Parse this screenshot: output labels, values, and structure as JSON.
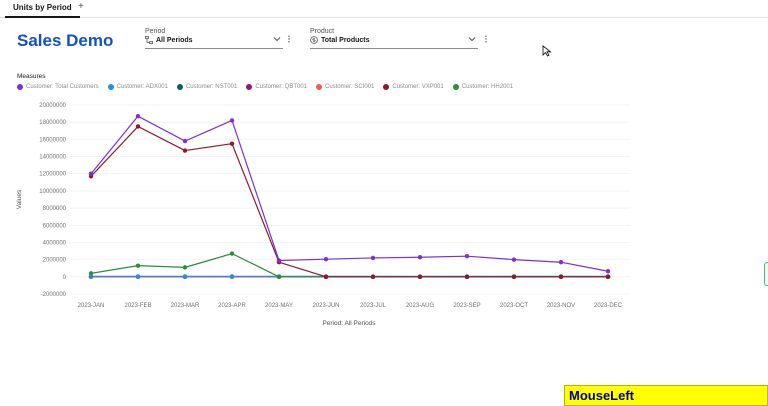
{
  "tabs": {
    "active": "Units by Period",
    "add": "+"
  },
  "dashboard": {
    "title": "Sales Demo"
  },
  "filters": {
    "period": {
      "label": "Period",
      "value": "All Periods"
    },
    "product": {
      "label": "Product",
      "value": "Total Products"
    }
  },
  "icons": {
    "period": "calendar-hierarchy-icon",
    "product": "dollar-circle-icon",
    "chevron": "chevron-down-icon",
    "menu": "overflow-menu-icon",
    "cursor": "mouse-pointer-icon"
  },
  "measures_label": "Measures",
  "status": {
    "mouse_event": "MouseLeft"
  },
  "chart_data": {
    "type": "line",
    "xlabel": "Period: All Periods",
    "ylabel": "Values",
    "categories": [
      "2023-JAN",
      "2023-FEB",
      "2023-MAR",
      "2023-APR",
      "2023-MAY",
      "2023-JUN",
      "2023-JUL",
      "2023-AUG",
      "2023-SEP",
      "2023-OCT",
      "2023-NOV",
      "2023-DEC"
    ],
    "ylim": [
      -2000000,
      20000000
    ],
    "yticks": [
      "-2000000",
      "0",
      "2000000",
      "4000000",
      "6000000",
      "8000000",
      "10000000",
      "12000000",
      "14000000",
      "16000000",
      "18000000",
      "20000000"
    ],
    "grid": true,
    "legend_position": "top-left",
    "series": [
      {
        "name": "Customer: Total Customers",
        "color": "#7b2fd6",
        "values": [
          12000000,
          18700000,
          15800000,
          18200000,
          1900000,
          2050000,
          2200000,
          2280000,
          2400000,
          2000000,
          1700000,
          650000
        ]
      },
      {
        "name": "Customer: ADX001",
        "color": "#1f8ee6",
        "values": [
          50000,
          50000,
          50000,
          50000,
          50000,
          50000,
          50000,
          50000,
          50000,
          50000,
          50000,
          50000
        ]
      },
      {
        "name": "Customer: NST001",
        "color": "#0c5f5f",
        "values": [
          0,
          0,
          0,
          0,
          0,
          0,
          0,
          0,
          0,
          0,
          0,
          0
        ]
      },
      {
        "name": "Customer: QBT001",
        "color": "#8a1a6e",
        "values": [
          0,
          0,
          0,
          0,
          0,
          0,
          0,
          0,
          0,
          0,
          0,
          0
        ]
      },
      {
        "name": "Customer: SCI001",
        "color": "#f05a5a",
        "values": [
          0,
          0,
          0,
          0,
          0,
          0,
          0,
          0,
          0,
          0,
          0,
          0
        ]
      },
      {
        "name": "Customer: VXP001",
        "color": "#8b1a2e",
        "values": [
          11700000,
          17500000,
          14700000,
          15500000,
          1700000,
          0,
          0,
          0,
          0,
          0,
          0,
          0
        ]
      },
      {
        "name": "Customer: HH2001",
        "color": "#2e8b3e",
        "values": [
          400000,
          1300000,
          1100000,
          2700000,
          0,
          0,
          0,
          0,
          0,
          0,
          0,
          0
        ]
      }
    ]
  }
}
